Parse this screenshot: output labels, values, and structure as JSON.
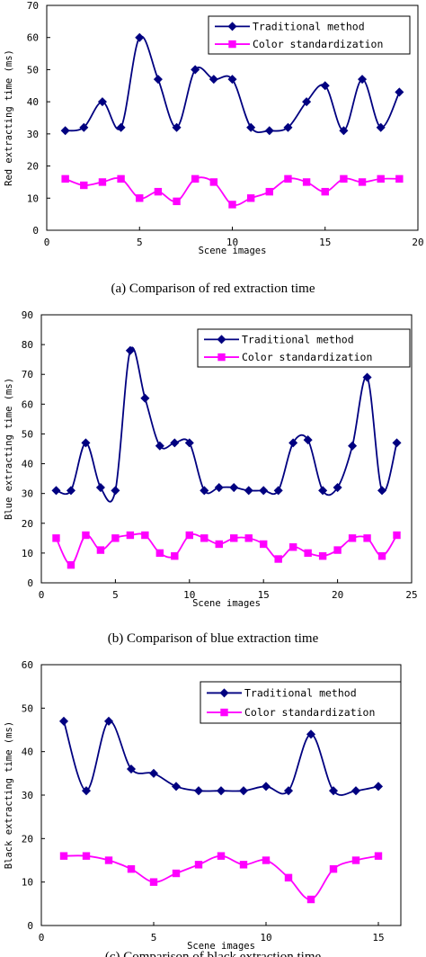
{
  "colors": {
    "traditional": "#000080",
    "standardized": "#ff00ff",
    "axis": "#000000"
  },
  "chart_data": [
    {
      "type": "line",
      "caption": "(a) Comparison of red extraction time",
      "xlabel": "Scene images",
      "ylabel": "Red extracting time (ms)",
      "xlim": [
        0,
        20
      ],
      "ylim": [
        0,
        70
      ],
      "xticks": [
        0,
        5,
        10,
        15,
        20
      ],
      "yticks": [
        0,
        10,
        20,
        30,
        40,
        50,
        60,
        70
      ],
      "legend_position": "top-right",
      "series": [
        {
          "name": "Traditional method",
          "marker": "diamond",
          "color": "#000080",
          "x": [
            1,
            2,
            3,
            4,
            5,
            6,
            7,
            8,
            9,
            10,
            11,
            12,
            13,
            14,
            15,
            16,
            17,
            18,
            19
          ],
          "y": [
            31,
            32,
            40,
            32,
            60,
            47,
            32,
            50,
            47,
            47,
            32,
            31,
            32,
            40,
            45,
            31,
            47,
            32,
            43
          ]
        },
        {
          "name": "Color standardization",
          "marker": "square",
          "color": "#ff00ff",
          "x": [
            1,
            2,
            3,
            4,
            5,
            6,
            7,
            8,
            9,
            10,
            11,
            12,
            13,
            14,
            15,
            16,
            17,
            18,
            19
          ],
          "y": [
            16,
            14,
            15,
            16,
            10,
            12,
            9,
            16,
            15,
            8,
            10,
            12,
            16,
            15,
            12,
            16,
            15,
            16,
            16
          ]
        }
      ]
    },
    {
      "type": "line",
      "caption": "(b) Comparison of blue extraction time",
      "xlabel": "Scene images",
      "ylabel": "Blue extracting time (ms)",
      "xlim": [
        0,
        25
      ],
      "ylim": [
        0,
        90
      ],
      "xticks": [
        0,
        5,
        10,
        15,
        20,
        25
      ],
      "yticks": [
        0,
        10,
        20,
        30,
        40,
        50,
        60,
        70,
        80,
        90
      ],
      "legend_position": "top-right",
      "series": [
        {
          "name": "Traditional method",
          "marker": "diamond",
          "color": "#000080",
          "x": [
            1,
            2,
            3,
            4,
            5,
            6,
            7,
            8,
            9,
            10,
            11,
            12,
            13,
            14,
            15,
            16,
            17,
            18,
            19,
            20,
            21,
            22,
            23,
            24
          ],
          "y": [
            31,
            31,
            47,
            32,
            31,
            78,
            62,
            46,
            47,
            47,
            31,
            32,
            32,
            31,
            31,
            31,
            47,
            48,
            31,
            32,
            46,
            69,
            31,
            47
          ]
        },
        {
          "name": "Color standardization",
          "marker": "square",
          "color": "#ff00ff",
          "x": [
            1,
            2,
            3,
            4,
            5,
            6,
            7,
            8,
            9,
            10,
            11,
            12,
            13,
            14,
            15,
            16,
            17,
            18,
            19,
            20,
            21,
            22,
            23,
            24
          ],
          "y": [
            15,
            6,
            16,
            11,
            15,
            16,
            16,
            10,
            9,
            16,
            15,
            13,
            15,
            15,
            13,
            8,
            12,
            10,
            9,
            11,
            15,
            15,
            9,
            16
          ]
        }
      ]
    },
    {
      "type": "line",
      "caption": "(c) Comparison of black extraction time",
      "xlabel": "Scene images",
      "ylabel": "Black extracting time (ms)",
      "xlim": [
        0,
        16
      ],
      "ylim": [
        0,
        60
      ],
      "xticks": [
        0,
        5,
        10,
        15
      ],
      "yticks": [
        0,
        10,
        20,
        30,
        40,
        50,
        60
      ],
      "legend_position": "top-right",
      "series": [
        {
          "name": "Traditional method",
          "marker": "diamond",
          "color": "#000080",
          "x": [
            1,
            2,
            3,
            4,
            5,
            6,
            7,
            8,
            9,
            10,
            11,
            12,
            13,
            14,
            15
          ],
          "y": [
            47,
            31,
            47,
            36,
            35,
            32,
            31,
            31,
            31,
            32,
            31,
            44,
            31,
            31,
            32
          ]
        },
        {
          "name": "Color standardization",
          "marker": "square",
          "color": "#ff00ff",
          "x": [
            1,
            2,
            3,
            4,
            5,
            6,
            7,
            8,
            9,
            10,
            11,
            12,
            13,
            14,
            15
          ],
          "y": [
            16,
            16,
            15,
            13,
            10,
            12,
            14,
            16,
            14,
            15,
            11,
            6,
            13,
            15,
            16
          ]
        }
      ]
    }
  ]
}
